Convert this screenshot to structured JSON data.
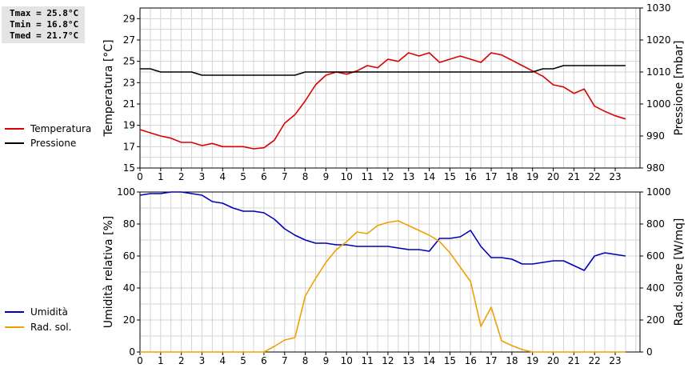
{
  "stats": {
    "tmax": "Tmax = 25.8°C",
    "tmin": "Tmin = 16.8°C",
    "tmed": "Tmed = 21.7°C"
  },
  "colors": {
    "temperature": "#dd0000",
    "pressure": "#000000",
    "humidity": "#0000bb",
    "radiation": "#f0a000",
    "grid": "#d4d4d4"
  },
  "chart_data": [
    {
      "type": "line",
      "x_ticks": [
        "0",
        "1",
        "2",
        "3",
        "4",
        "5",
        "6",
        "7",
        "8",
        "9",
        "10",
        "11",
        "12",
        "13",
        "14",
        "15",
        "16",
        "17",
        "18",
        "19",
        "20",
        "21",
        "22",
        "23"
      ],
      "xlim": [
        0,
        24.2
      ],
      "ylabel_left": "Temperatura [°C]",
      "ylim_left": [
        15,
        30
      ],
      "yticks_left": [
        "15",
        "17",
        "19",
        "21",
        "23",
        "25",
        "27",
        "29"
      ],
      "ylabel_right": "Pressione [mbar]",
      "ylim_right": [
        980,
        1030
      ],
      "yticks_right": [
        "980",
        "990",
        "1000",
        "1010",
        "1020",
        "1030"
      ],
      "grid": true,
      "legend_position": "left",
      "series": [
        {
          "name": "Temperatura",
          "axis": "left",
          "color_key": "temperature",
          "x": [
            0,
            0.5,
            1,
            1.5,
            2,
            2.5,
            3,
            3.5,
            4,
            4.5,
            5,
            5.5,
            6,
            6.5,
            7,
            7.5,
            8,
            8.5,
            9,
            9.5,
            10,
            10.5,
            11,
            11.5,
            12,
            12.5,
            13,
            13.5,
            14,
            14.5,
            15,
            15.5,
            16,
            16.5,
            17,
            17.5,
            18,
            18.5,
            19,
            19.5,
            20,
            20.5,
            21,
            21.5,
            22,
            22.5,
            23,
            23.5
          ],
          "values": [
            18.6,
            18.3,
            18.0,
            17.8,
            17.4,
            17.4,
            17.1,
            17.3,
            17.0,
            17.0,
            17.0,
            16.8,
            16.9,
            17.6,
            19.2,
            20.0,
            21.3,
            22.8,
            23.7,
            24.0,
            23.8,
            24.1,
            24.6,
            24.4,
            25.2,
            25.0,
            25.8,
            25.5,
            25.8,
            24.9,
            25.2,
            25.5,
            25.2,
            24.9,
            25.8,
            25.6,
            25.1,
            24.6,
            24.1,
            23.6,
            22.8,
            22.6,
            22.0,
            22.4,
            20.8,
            20.3,
            19.9,
            19.6
          ]
        },
        {
          "name": "Pressione",
          "axis": "right",
          "color_key": "pressure",
          "x": [
            0,
            0.5,
            1,
            1.5,
            2,
            2.5,
            3,
            3.5,
            4,
            4.5,
            5,
            5.5,
            6,
            6.5,
            7,
            7.5,
            8,
            8.5,
            9,
            9.5,
            10,
            10.5,
            11,
            11.5,
            12,
            12.5,
            13,
            13.5,
            14,
            14.5,
            15,
            15.5,
            16,
            16.5,
            17,
            17.5,
            18,
            18.5,
            19,
            19.5,
            20,
            20.5,
            21,
            21.5,
            22,
            22.5,
            23,
            23.5
          ],
          "values": [
            1011,
            1011,
            1010,
            1010,
            1010,
            1010,
            1009,
            1009,
            1009,
            1009,
            1009,
            1009,
            1009,
            1009,
            1009,
            1009,
            1010,
            1010,
            1010,
            1010,
            1010,
            1010,
            1010,
            1010,
            1010,
            1010,
            1010,
            1010,
            1010,
            1010,
            1010,
            1010,
            1010,
            1010,
            1010,
            1010,
            1010,
            1010,
            1010,
            1011,
            1011,
            1012,
            1012,
            1012,
            1012,
            1012,
            1012,
            1012
          ]
        }
      ]
    },
    {
      "type": "line",
      "x_ticks": [
        "0",
        "1",
        "2",
        "3",
        "4",
        "5",
        "6",
        "7",
        "8",
        "9",
        "10",
        "11",
        "12",
        "13",
        "14",
        "15",
        "16",
        "17",
        "18",
        "19",
        "20",
        "21",
        "22",
        "23"
      ],
      "xlim": [
        0,
        24.2
      ],
      "ylabel_left": "Umidità relativa [%]",
      "ylim_left": [
        0,
        100
      ],
      "yticks_left": [
        "0",
        "20",
        "40",
        "60",
        "80",
        "100"
      ],
      "ylabel_right": "Rad. solare [W/mq]",
      "ylim_right": [
        0,
        1000
      ],
      "yticks_right": [
        "0",
        "200",
        "400",
        "600",
        "800",
        "1000"
      ],
      "grid": true,
      "legend_position": "left",
      "series": [
        {
          "name": "Umidità",
          "axis": "left",
          "color_key": "humidity",
          "x": [
            0,
            0.5,
            1,
            1.5,
            2,
            2.5,
            3,
            3.5,
            4,
            4.5,
            5,
            5.5,
            6,
            6.5,
            7,
            7.5,
            8,
            8.5,
            9,
            9.5,
            10,
            10.5,
            11,
            11.5,
            12,
            12.5,
            13,
            13.5,
            14,
            14.5,
            15,
            15.5,
            16,
            16.5,
            17,
            17.5,
            18,
            18.5,
            19,
            19.5,
            20,
            20.5,
            21,
            21.5,
            22,
            22.5,
            23,
            23.5
          ],
          "values": [
            98,
            99,
            99,
            100,
            100,
            99,
            98,
            94,
            93,
            90,
            88,
            88,
            87,
            83,
            77,
            73,
            70,
            68,
            68,
            67,
            67,
            66,
            66,
            66,
            66,
            65,
            64,
            64,
            63,
            71,
            71,
            72,
            76,
            66,
            59,
            59,
            58,
            55,
            55,
            56,
            57,
            57,
            54,
            51,
            60,
            62,
            61,
            60
          ]
        },
        {
          "name": "Rad. sol.",
          "axis": "right",
          "color_key": "radiation",
          "x": [
            0,
            0.5,
            1,
            1.5,
            2,
            2.5,
            3,
            3.5,
            4,
            4.5,
            5,
            5.5,
            6,
            6.5,
            7,
            7.5,
            8,
            8.5,
            9,
            9.5,
            10,
            10.5,
            11,
            11.5,
            12,
            12.5,
            13,
            13.5,
            14,
            14.5,
            15,
            15.5,
            16,
            16.5,
            17,
            17.5,
            18,
            18.5,
            19,
            19.5,
            20,
            20.5,
            21,
            21.5,
            22,
            22.5,
            23,
            23.5
          ],
          "values": [
            0,
            0,
            0,
            0,
            0,
            0,
            0,
            0,
            0,
            0,
            0,
            0,
            0,
            35,
            75,
            90,
            350,
            460,
            560,
            640,
            690,
            750,
            740,
            790,
            810,
            820,
            790,
            760,
            730,
            690,
            620,
            530,
            440,
            160,
            280,
            70,
            40,
            15,
            0,
            0,
            0,
            0,
            0,
            0,
            0,
            0,
            0,
            0
          ]
        }
      ]
    }
  ]
}
